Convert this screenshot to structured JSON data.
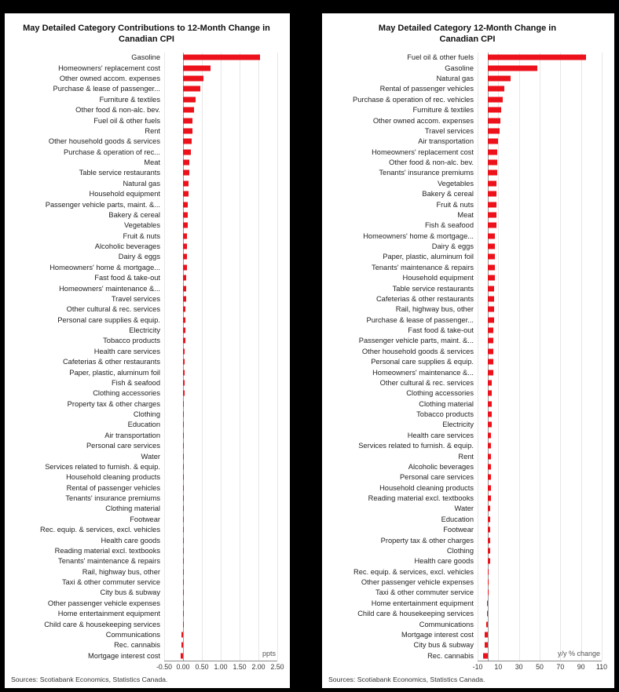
{
  "page": {
    "background_color": "#000000",
    "panel_color": "#ffffff"
  },
  "chart_data": [
    {
      "type": "bar",
      "orientation": "horizontal",
      "title": "May Detailed Category Contributions to 12-Month Change in Canadian CPI",
      "unit_label": "ppts",
      "source": "Sources: Scotiabank Economics, Statistics Canada.",
      "bar_color": "#ec111a",
      "grid": true,
      "xlim": [
        -0.5,
        2.5
      ],
      "tick_values": [
        -0.5,
        0,
        0.5,
        1,
        1.5,
        2,
        2.5
      ],
      "tick_labels": [
        "-0.50",
        "0.00",
        "0.50",
        "1.00",
        "1.50",
        "2.00",
        "2.50"
      ],
      "categories": [
        "Gasoline",
        "Homeowners' replacement cost",
        "Other owned accom. expenses",
        "Purchase & lease of passenger...",
        "Furniture & textiles",
        "Other food & non-alc. bev.",
        "Fuel oil & other fuels",
        "Rent",
        "Other household goods & services",
        "Purchase & operation of rec...",
        "Meat",
        "Table service restaurants",
        "Natural gas",
        "Household equipment",
        "Passenger vehicle parts, maint. &...",
        "Bakery & cereal",
        "Vegetables",
        "Fruit & nuts",
        "Alcoholic beverages",
        "Dairy & eggs",
        "Homeowners' home & mortgage...",
        "Fast food & take-out",
        "Homeowners' maintenance &...",
        "Travel services",
        "Other cultural & rec. services",
        "Personal care supplies & equip.",
        "Electricity",
        "Tobacco products",
        "Health care services",
        "Cafeterias & other restaurants",
        "Paper, plastic, aluminum foil",
        "Fish & seafood",
        "Clothing accessories",
        "Property tax & other charges",
        "Clothing",
        "Education",
        "Air transportation",
        "Personal care services",
        "Water",
        "Services related to furnish. & equip.",
        "Household cleaning products",
        "Rental of passenger vehicles",
        "Tenants' insurance premiums",
        "Clothing material",
        "Footwear",
        "Rec. equip. & services, excl. vehicles",
        "Health care goods",
        "Reading material excl. textbooks",
        "Tenants' maintenance & repairs",
        "Rail, highway bus, other",
        "Taxi & other commuter service",
        "City bus & subway",
        "Other passenger vehicle expenses",
        "Home entertainment equipment",
        "Child care & housekeeping services",
        "Communications",
        "Rec. cannabis",
        "Mortgage interest cost"
      ],
      "values": [
        2.05,
        0.72,
        0.55,
        0.45,
        0.33,
        0.3,
        0.26,
        0.24,
        0.22,
        0.2,
        0.17,
        0.17,
        0.15,
        0.14,
        0.13,
        0.12,
        0.12,
        0.11,
        0.1,
        0.1,
        0.1,
        0.09,
        0.08,
        0.08,
        0.07,
        0.07,
        0.06,
        0.06,
        0.05,
        0.05,
        0.05,
        0.04,
        0.04,
        0.03,
        0.03,
        0.03,
        0.02,
        0.02,
        0.02,
        0.02,
        0.02,
        0.02,
        0.01,
        0.01,
        0.01,
        0.01,
        0.01,
        0.01,
        0.01,
        0.01,
        0.01,
        0.01,
        -0.01,
        -0.01,
        -0.01,
        -0.04,
        -0.04,
        -0.07
      ]
    },
    {
      "type": "bar",
      "orientation": "horizontal",
      "title": "May Detailed Category 12-Month Change in Canadian CPI",
      "unit_label": "y/y % change",
      "source": "Sources: Scotiabank Economics, Statistics Canada.",
      "bar_color": "#ec111a",
      "grid": true,
      "xlim": [
        -10,
        110
      ],
      "tick_values": [
        -10,
        10,
        30,
        50,
        70,
        90,
        110
      ],
      "tick_labels": [
        "-10",
        "10",
        "30",
        "50",
        "70",
        "90",
        "110"
      ],
      "categories": [
        "Fuel oil & other fuels",
        "Gasoline",
        "Natural gas",
        "Rental of passenger vehicles",
        "Purchase & operation of rec. vehicles",
        "Furniture & textiles",
        "Other owned accom. expenses",
        "Travel services",
        "Air transportation",
        "Homeowners' replacement cost",
        "Other food & non-alc. bev.",
        "Tenants' insurance premiums",
        "Vegetables",
        "Bakery & cereal",
        "Fruit & nuts",
        "Meat",
        "Fish & seafood",
        "Homeowners' home & mortgage...",
        "Dairy & eggs",
        "Paper, plastic, aluminum foil",
        "Tenants' maintenance & repairs",
        "Household equipment",
        "Table service restaurants",
        "Cafeterias & other restaurants",
        "Rail, highway bus, other",
        "Purchase & lease of passenger...",
        "Fast food & take-out",
        "Passenger vehicle parts, maint. &...",
        "Other household goods & services",
        "Personal care supplies & equip.",
        "Homeowners' maintenance &...",
        "Other cultural & rec. services",
        "Clothing accessories",
        "Clothing material",
        "Tobacco products",
        "Electricity",
        "Health care services",
        "Services related to furnish. & equip.",
        "Rent",
        "Alcoholic beverages",
        "Personal care services",
        "Household cleaning products",
        "Reading material excl. textbooks",
        "Water",
        "Education",
        "Footwear",
        "Property tax & other charges",
        "Clothing",
        "Health care goods",
        "Rec. equip. & services, excl. vehicles",
        "Other passenger vehicle expenses",
        "Taxi & other commuter service",
        "Home entertainment equipment",
        "Child care & housekeeping services",
        "Communications",
        "Mortgage interest cost",
        "City bus & subway",
        "Rec. cannabis"
      ],
      "values": [
        95,
        48,
        22,
        16,
        14,
        13,
        12,
        11,
        10,
        9,
        9,
        9,
        8,
        8,
        8,
        8,
        8,
        7,
        7,
        7,
        7,
        7,
        6,
        6,
        6,
        6,
        5,
        5,
        5,
        5,
        5,
        4,
        4,
        4,
        4,
        4,
        3,
        3,
        3,
        3,
        3,
        3,
        3,
        2,
        2,
        2,
        2,
        2,
        2,
        1,
        1,
        1,
        -1,
        -1,
        -2,
        -3,
        -3,
        -5
      ]
    }
  ]
}
